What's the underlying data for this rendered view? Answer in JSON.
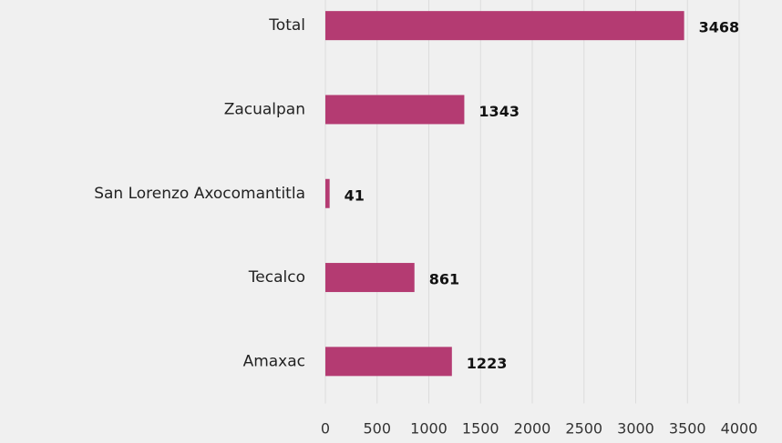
{
  "chart_data": {
    "type": "hbar",
    "categories": [
      "Total",
      "Zacualpan",
      "San Lorenzo Axocomantitla",
      "Tecalco",
      "Amaxac"
    ],
    "values": [
      3468,
      1343,
      41,
      861,
      1223
    ],
    "color": "#b43b72",
    "xlim": [
      0,
      4000
    ],
    "xticks": [
      0,
      500,
      1000,
      1500,
      2000,
      2500,
      3000,
      3500,
      4000
    ],
    "grid": true
  }
}
